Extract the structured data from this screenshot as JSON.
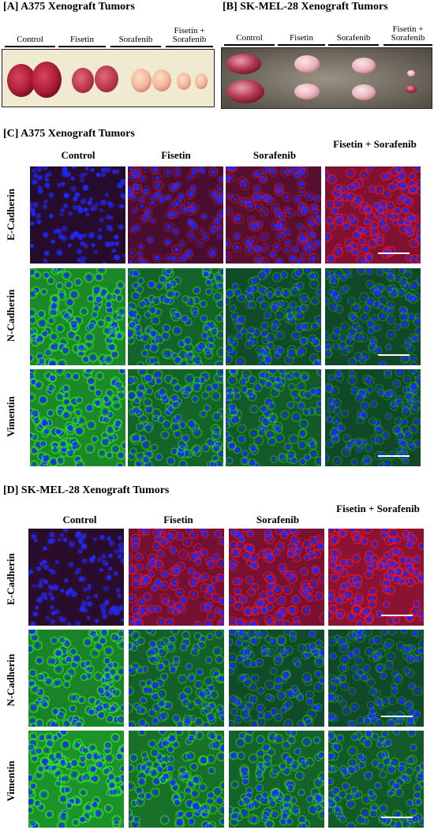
{
  "panel_a": {
    "title": "[A]  A375 Xenograft Tumors",
    "groups": [
      "Control",
      "Fisetin",
      "Sorafenib",
      "Fisetin + Sorafenib"
    ]
  },
  "panel_b": {
    "title": "[B] SK-MEL-28 Xenograft Tumors",
    "groups": [
      "Control",
      "Fisetin",
      "Sorafenib",
      "Fisetin + Sorafenib"
    ]
  },
  "panel_c": {
    "title": "[C]  A375 Xenograft Tumors",
    "columns": [
      "Control",
      "Fisetin",
      "Sorafenib",
      "Fisetin + Sorafenib"
    ],
    "rows": [
      "E-Cadherin",
      "N-Cadherin",
      "Vimentin"
    ]
  },
  "panel_d": {
    "title": "[D] SK-MEL-28 Xenograft Tumors",
    "columns": [
      "Control",
      "Fisetin",
      "Sorafenib",
      "Fisetin + Sorafenib"
    ],
    "rows": [
      "E-Cadherin",
      "N-Cadherin",
      "Vimentin"
    ]
  },
  "colors": {
    "nucleus_blue": "#1a2aff",
    "ecadherin_red": "#e0183a",
    "green_stain": "#2ee02a",
    "tumor_dark": "#b01d3a",
    "tumor_pale": "#f2b49a",
    "photo_bg_a": "#f0ead0",
    "photo_bg_b": "#6a6256"
  },
  "stain_levels": {
    "panel_c": {
      "E-Cadherin": [
        0.05,
        0.35,
        0.45,
        0.8
      ],
      "N-Cadherin": [
        0.85,
        0.55,
        0.35,
        0.3
      ],
      "Vimentin": [
        0.85,
        0.55,
        0.45,
        0.3
      ]
    },
    "panel_d": {
      "E-Cadherin": [
        0.08,
        0.7,
        0.75,
        0.9
      ],
      "N-Cadherin": [
        0.8,
        0.5,
        0.35,
        0.3
      ],
      "Vimentin": [
        0.95,
        0.65,
        0.55,
        0.45
      ]
    }
  }
}
